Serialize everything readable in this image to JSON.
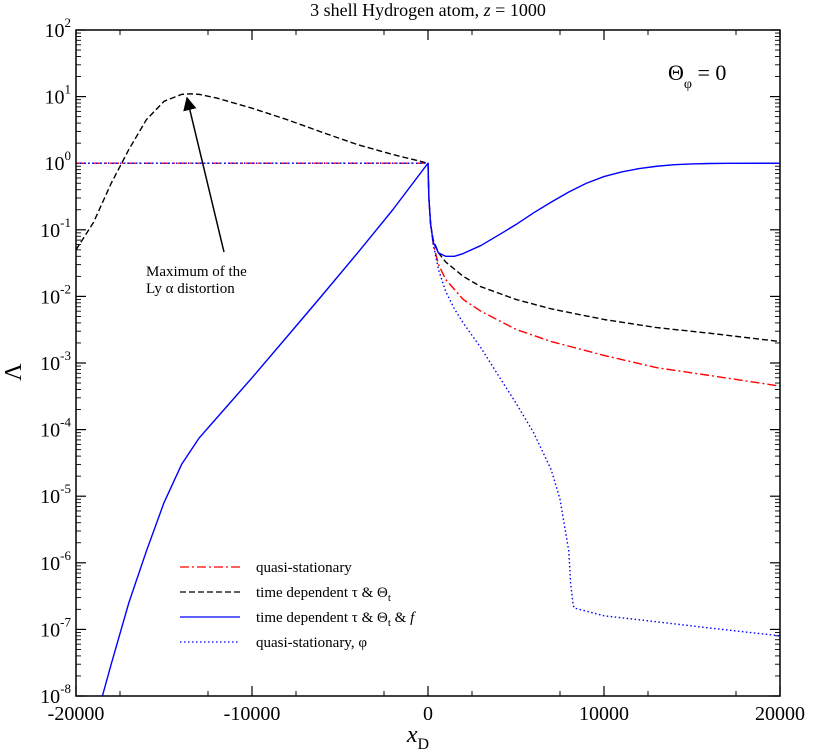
{
  "chart_data": {
    "type": "line",
    "title_parts": [
      "3 shell Hydrogen atom, ",
      "z",
      " = 1000"
    ],
    "xlabel": {
      "base": "x",
      "sub": "D"
    },
    "ylabel": "Λ",
    "xlim": [
      -20000,
      20000
    ],
    "ylim": [
      1e-08,
      100
    ],
    "yscale": "log",
    "x_ticks": [
      "-20000",
      "-10000",
      "0",
      "10000",
      "20000"
    ],
    "y_tick_exponents": [
      "-8",
      "-7",
      "-6",
      "-5",
      "-4",
      "-3",
      "-2",
      "-1",
      "0",
      "1",
      "2"
    ],
    "y_tick_base": "10",
    "inset_label": {
      "base": "Θ",
      "sub": "φ",
      "rest": " = 0"
    },
    "annotation": {
      "lines": [
        "Maximum of the",
        "Ly α distortion"
      ],
      "points_to": [
        -13500,
        11
      ]
    },
    "legend": [
      {
        "label": "quasi-stationary",
        "style": "dashdot",
        "color": "#ff0000"
      },
      {
        "label": "time dependent τ & Θ",
        "sub": "t",
        "style": "dashed",
        "color": "#000000"
      },
      {
        "label": "time dependent τ & Θ",
        "sub": "t",
        "tail": " & ",
        "italic": "f",
        "style": "solid",
        "color": "#0000ff"
      },
      {
        "label": "quasi-stationary, φ",
        "style": "dotted",
        "color": "#0000ff"
      }
    ],
    "series": [
      {
        "name": "quasi-stationary",
        "color": "#ff0000",
        "style": "dashdot",
        "x": [
          -20000,
          -5000,
          0,
          50,
          150,
          300,
          600,
          1000,
          2000,
          3000,
          5000,
          7000,
          10000,
          13000,
          16000,
          20000
        ],
        "y": [
          1,
          1,
          1,
          0.3,
          0.12,
          0.06,
          0.03,
          0.018,
          0.009,
          0.006,
          0.0032,
          0.0021,
          0.0013,
          0.00085,
          0.00065,
          0.00045
        ]
      },
      {
        "name": "time dependent τ & Θt",
        "color": "#000000",
        "style": "dashed",
        "x": [
          -20000,
          -19000,
          -18000,
          -17000,
          -16000,
          -15000,
          -14000,
          -13500,
          -13000,
          -12000,
          -10000,
          -8000,
          -6000,
          -4000,
          -2000,
          0,
          50,
          150,
          300,
          600,
          1000,
          2000,
          3000,
          5000,
          7000,
          10000,
          13000,
          16000,
          20000
        ],
        "y": [
          0.05,
          0.13,
          0.5,
          1.6,
          4.5,
          8.5,
          10.8,
          11,
          10.8,
          9.5,
          6.7,
          4.5,
          2.9,
          1.9,
          1.35,
          1.0,
          0.3,
          0.12,
          0.07,
          0.045,
          0.033,
          0.02,
          0.014,
          0.009,
          0.0065,
          0.0045,
          0.0034,
          0.0028,
          0.0021
        ]
      },
      {
        "name": "time dependent τ & Θt & f",
        "color": "#0000ff",
        "style": "solid",
        "x": [
          -18500,
          -18000,
          -17000,
          -16000,
          -15000,
          -14000,
          -13000,
          -12000,
          -10000,
          -8000,
          -6000,
          -4000,
          -2000,
          0,
          50,
          150,
          300,
          600,
          1000,
          1500,
          2000,
          3000,
          4000,
          5000,
          6000,
          7000,
          8000,
          9000,
          10000,
          11000,
          12000,
          13000,
          14000,
          15000,
          16000,
          17000,
          20000
        ],
        "y": [
          1e-08,
          3e-08,
          2.5e-07,
          1.5e-06,
          8e-06,
          3e-05,
          7.5e-05,
          0.00015,
          0.0006,
          0.0025,
          0.0105,
          0.045,
          0.2,
          1.0,
          0.3,
          0.12,
          0.065,
          0.045,
          0.04,
          0.04,
          0.044,
          0.058,
          0.083,
          0.12,
          0.18,
          0.26,
          0.37,
          0.5,
          0.63,
          0.74,
          0.83,
          0.9,
          0.95,
          0.975,
          0.99,
          0.995,
          1.0
        ]
      },
      {
        "name": "quasi-stationary, φ",
        "color": "#0000ff",
        "style": "dotted",
        "x": [
          -20000,
          -5000,
          0,
          50,
          150,
          300,
          600,
          1000,
          1500,
          2000,
          3000,
          4000,
          5000,
          6000,
          7000,
          7500,
          8000,
          8100,
          8200,
          8250,
          8300,
          10000,
          13000,
          16000,
          20000
        ],
        "y": [
          1,
          1,
          1,
          0.3,
          0.12,
          0.06,
          0.025,
          0.012,
          0.0065,
          0.004,
          0.0017,
          0.00065,
          0.00025,
          9e-05,
          2.5e-05,
          9e-06,
          1.5e-06,
          5e-07,
          3e-07,
          2.3e-07,
          2.1e-07,
          1.6e-07,
          1.3e-07,
          1.05e-07,
          8e-08
        ]
      }
    ]
  }
}
